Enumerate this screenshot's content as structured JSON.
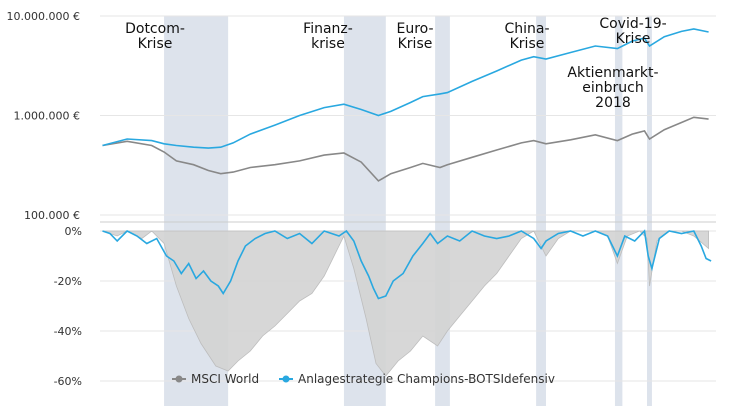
{
  "chart_data": [
    {
      "type": "line",
      "yscale": "log",
      "ylim": [
        100000,
        10000000
      ],
      "xlim": [
        1997.9,
        2022.9
      ],
      "y_ticks": [
        "10.000.000 €",
        "1.000.000 €",
        "100.000 €"
      ],
      "y_tick_values": [
        10000000,
        1000000,
        100000
      ],
      "crisis_periods": [
        {
          "label": "Dotcom-Krise",
          "lines": [
            "Dotcom-",
            "Krise"
          ],
          "start": 2000.5,
          "end": 2003.1
        },
        {
          "label": "Finanzkrise",
          "lines": [
            "Finanz-",
            "krise"
          ],
          "start": 2007.8,
          "end": 2009.5
        },
        {
          "label": "Euro-Krise",
          "lines": [
            "Euro-",
            "Krise"
          ],
          "start": 2011.5,
          "end": 2012.1
        },
        {
          "label": "China-Krise",
          "lines": [
            "China-",
            "Krise"
          ],
          "start": 2015.6,
          "end": 2016.0
        },
        {
          "label": "Aktienmarkteinbruch 2018",
          "lines": [
            "Aktienmarkt-",
            "einbruch",
            "2018"
          ],
          "start": 2018.8,
          "end": 2019.1
        },
        {
          "label": "Covid-19-Krise",
          "lines": [
            "Covid-19-",
            "Krise"
          ],
          "start": 2020.1,
          "end": 2020.3
        }
      ],
      "series": [
        {
          "name": "MSCI World",
          "color": "#888888",
          "x": [
            1998,
            1999,
            2000,
            2000.5,
            2001,
            2001.7,
            2002.3,
            2002.8,
            2003.3,
            2004,
            2005,
            2006,
            2007,
            2007.8,
            2008.5,
            2009.2,
            2009.7,
            2010.5,
            2011,
            2011.7,
            2012,
            2013,
            2014,
            2015,
            2015.5,
            2016,
            2017,
            2018,
            2018.9,
            2019.5,
            2020,
            2020.2,
            2020.8,
            2021.5,
            2022,
            2022.6
          ],
          "y": [
            500000,
            550000,
            500000,
            430000,
            350000,
            320000,
            280000,
            260000,
            270000,
            300000,
            320000,
            350000,
            400000,
            420000,
            340000,
            220000,
            260000,
            300000,
            330000,
            300000,
            320000,
            380000,
            450000,
            530000,
            560000,
            520000,
            570000,
            640000,
            560000,
            650000,
            700000,
            580000,
            720000,
            850000,
            960000,
            920000
          ]
        },
        {
          "name": "Anlagestrategie Champions-BOTSIdefensiv",
          "color": "#29a8e0",
          "x": [
            1998,
            1999,
            2000,
            2000.5,
            2001,
            2001.7,
            2002.3,
            2002.8,
            2003.3,
            2004,
            2005,
            2006,
            2007,
            2007.8,
            2008.5,
            2009.2,
            2009.7,
            2010.5,
            2011,
            2011.7,
            2012,
            2013,
            2014,
            2015,
            2015.5,
            2016,
            2017,
            2018,
            2018.9,
            2019.5,
            2020,
            2020.2,
            2020.8,
            2021.5,
            2022,
            2022.6
          ],
          "y": [
            500000,
            580000,
            560000,
            520000,
            500000,
            480000,
            470000,
            480000,
            530000,
            650000,
            800000,
            1000000,
            1200000,
            1300000,
            1150000,
            1000000,
            1100000,
            1350000,
            1550000,
            1650000,
            1700000,
            2200000,
            2800000,
            3600000,
            3900000,
            3700000,
            4300000,
            5000000,
            4700000,
            5600000,
            6000000,
            5000000,
            6200000,
            7000000,
            7400000,
            6900000
          ]
        }
      ]
    },
    {
      "type": "area",
      "ylim": [
        -0.65,
        0
      ],
      "xlim": [
        1997.9,
        2022.9
      ],
      "y_ticks": [
        "0%",
        "-20%",
        "-40%",
        "-60%"
      ],
      "y_tick_values": [
        0,
        -0.2,
        -0.4,
        -0.6
      ],
      "series": [
        {
          "name": "MSCI World",
          "color": "#d3d3d3",
          "x": [
            1998,
            1998.6,
            1999,
            1999.6,
            2000,
            2000.5,
            2001,
            2001.5,
            2002,
            2002.6,
            2003.1,
            2003.5,
            2004,
            2004.5,
            2005,
            2005.5,
            2006,
            2006.5,
            2007,
            2007.5,
            2007.8,
            2008.2,
            2008.7,
            2009.1,
            2009.5,
            2010,
            2010.5,
            2011,
            2011.6,
            2012,
            2012.5,
            2013,
            2013.5,
            2014,
            2014.5,
            2015,
            2015.5,
            2016,
            2016.5,
            2017,
            2017.5,
            2018,
            2018.5,
            2018.9,
            2019.3,
            2019.8,
            2020.1,
            2020.2,
            2020.5,
            2021,
            2021.5,
            2022,
            2022.6
          ],
          "y": [
            0,
            -0.02,
            0,
            -0.03,
            0,
            -0.05,
            -0.22,
            -0.35,
            -0.45,
            -0.54,
            -0.56,
            -0.52,
            -0.48,
            -0.42,
            -0.38,
            -0.33,
            -0.28,
            -0.25,
            -0.18,
            -0.08,
            -0.02,
            -0.15,
            -0.35,
            -0.53,
            -0.58,
            -0.52,
            -0.48,
            -0.42,
            -0.46,
            -0.4,
            -0.34,
            -0.28,
            -0.22,
            -0.17,
            -0.1,
            -0.03,
            0,
            -0.1,
            -0.03,
            0,
            0,
            0,
            -0.02,
            -0.13,
            -0.02,
            0,
            -0.03,
            -0.22,
            -0.04,
            0,
            0,
            -0.02,
            -0.07
          ]
        },
        {
          "name": "Anlagestrategie Champions-BOTSIdefensiv",
          "color": "#29a8e0",
          "x": [
            1998,
            1998.3,
            1998.6,
            1999,
            1999.4,
            1999.8,
            2000.2,
            2000.6,
            2000.9,
            2001.2,
            2001.5,
            2001.8,
            2002.1,
            2002.4,
            2002.7,
            2002.9,
            2003.2,
            2003.5,
            2003.8,
            2004.2,
            2004.6,
            2005,
            2005.5,
            2006,
            2006.5,
            2007,
            2007.3,
            2007.6,
            2007.9,
            2008.2,
            2008.5,
            2008.8,
            2009,
            2009.2,
            2009.5,
            2009.8,
            2010.2,
            2010.6,
            2011,
            2011.3,
            2011.6,
            2012,
            2012.5,
            2013,
            2013.5,
            2014,
            2014.5,
            2015,
            2015.5,
            2015.8,
            2016,
            2016.5,
            2017,
            2017.5,
            2018,
            2018.5,
            2018.9,
            2019.2,
            2019.6,
            2020,
            2020.15,
            2020.3,
            2020.6,
            2021,
            2021.5,
            2022,
            2022.3,
            2022.5,
            2022.7
          ],
          "y": [
            0,
            -0.01,
            -0.04,
            0,
            -0.02,
            -0.05,
            -0.03,
            -0.1,
            -0.12,
            -0.17,
            -0.13,
            -0.19,
            -0.16,
            -0.2,
            -0.22,
            -0.25,
            -0.2,
            -0.12,
            -0.06,
            -0.03,
            -0.01,
            0,
            -0.03,
            -0.01,
            -0.05,
            0,
            -0.01,
            -0.02,
            0,
            -0.04,
            -0.12,
            -0.18,
            -0.23,
            -0.27,
            -0.26,
            -0.2,
            -0.17,
            -0.1,
            -0.05,
            -0.01,
            -0.05,
            -0.02,
            -0.04,
            0,
            -0.02,
            -0.03,
            -0.02,
            0,
            -0.03,
            -0.07,
            -0.04,
            -0.01,
            0,
            -0.02,
            0,
            -0.02,
            -0.1,
            -0.02,
            -0.04,
            0,
            -0.1,
            -0.15,
            -0.03,
            0,
            -0.01,
            0,
            -0.06,
            -0.11,
            -0.12
          ]
        }
      ]
    }
  ],
  "legend": {
    "items": [
      {
        "label": "MSCI World",
        "color": "#888888"
      },
      {
        "label": "Anlagestrategie Champions-BOTSIdefensiv",
        "color": "#29a8e0"
      }
    ]
  }
}
